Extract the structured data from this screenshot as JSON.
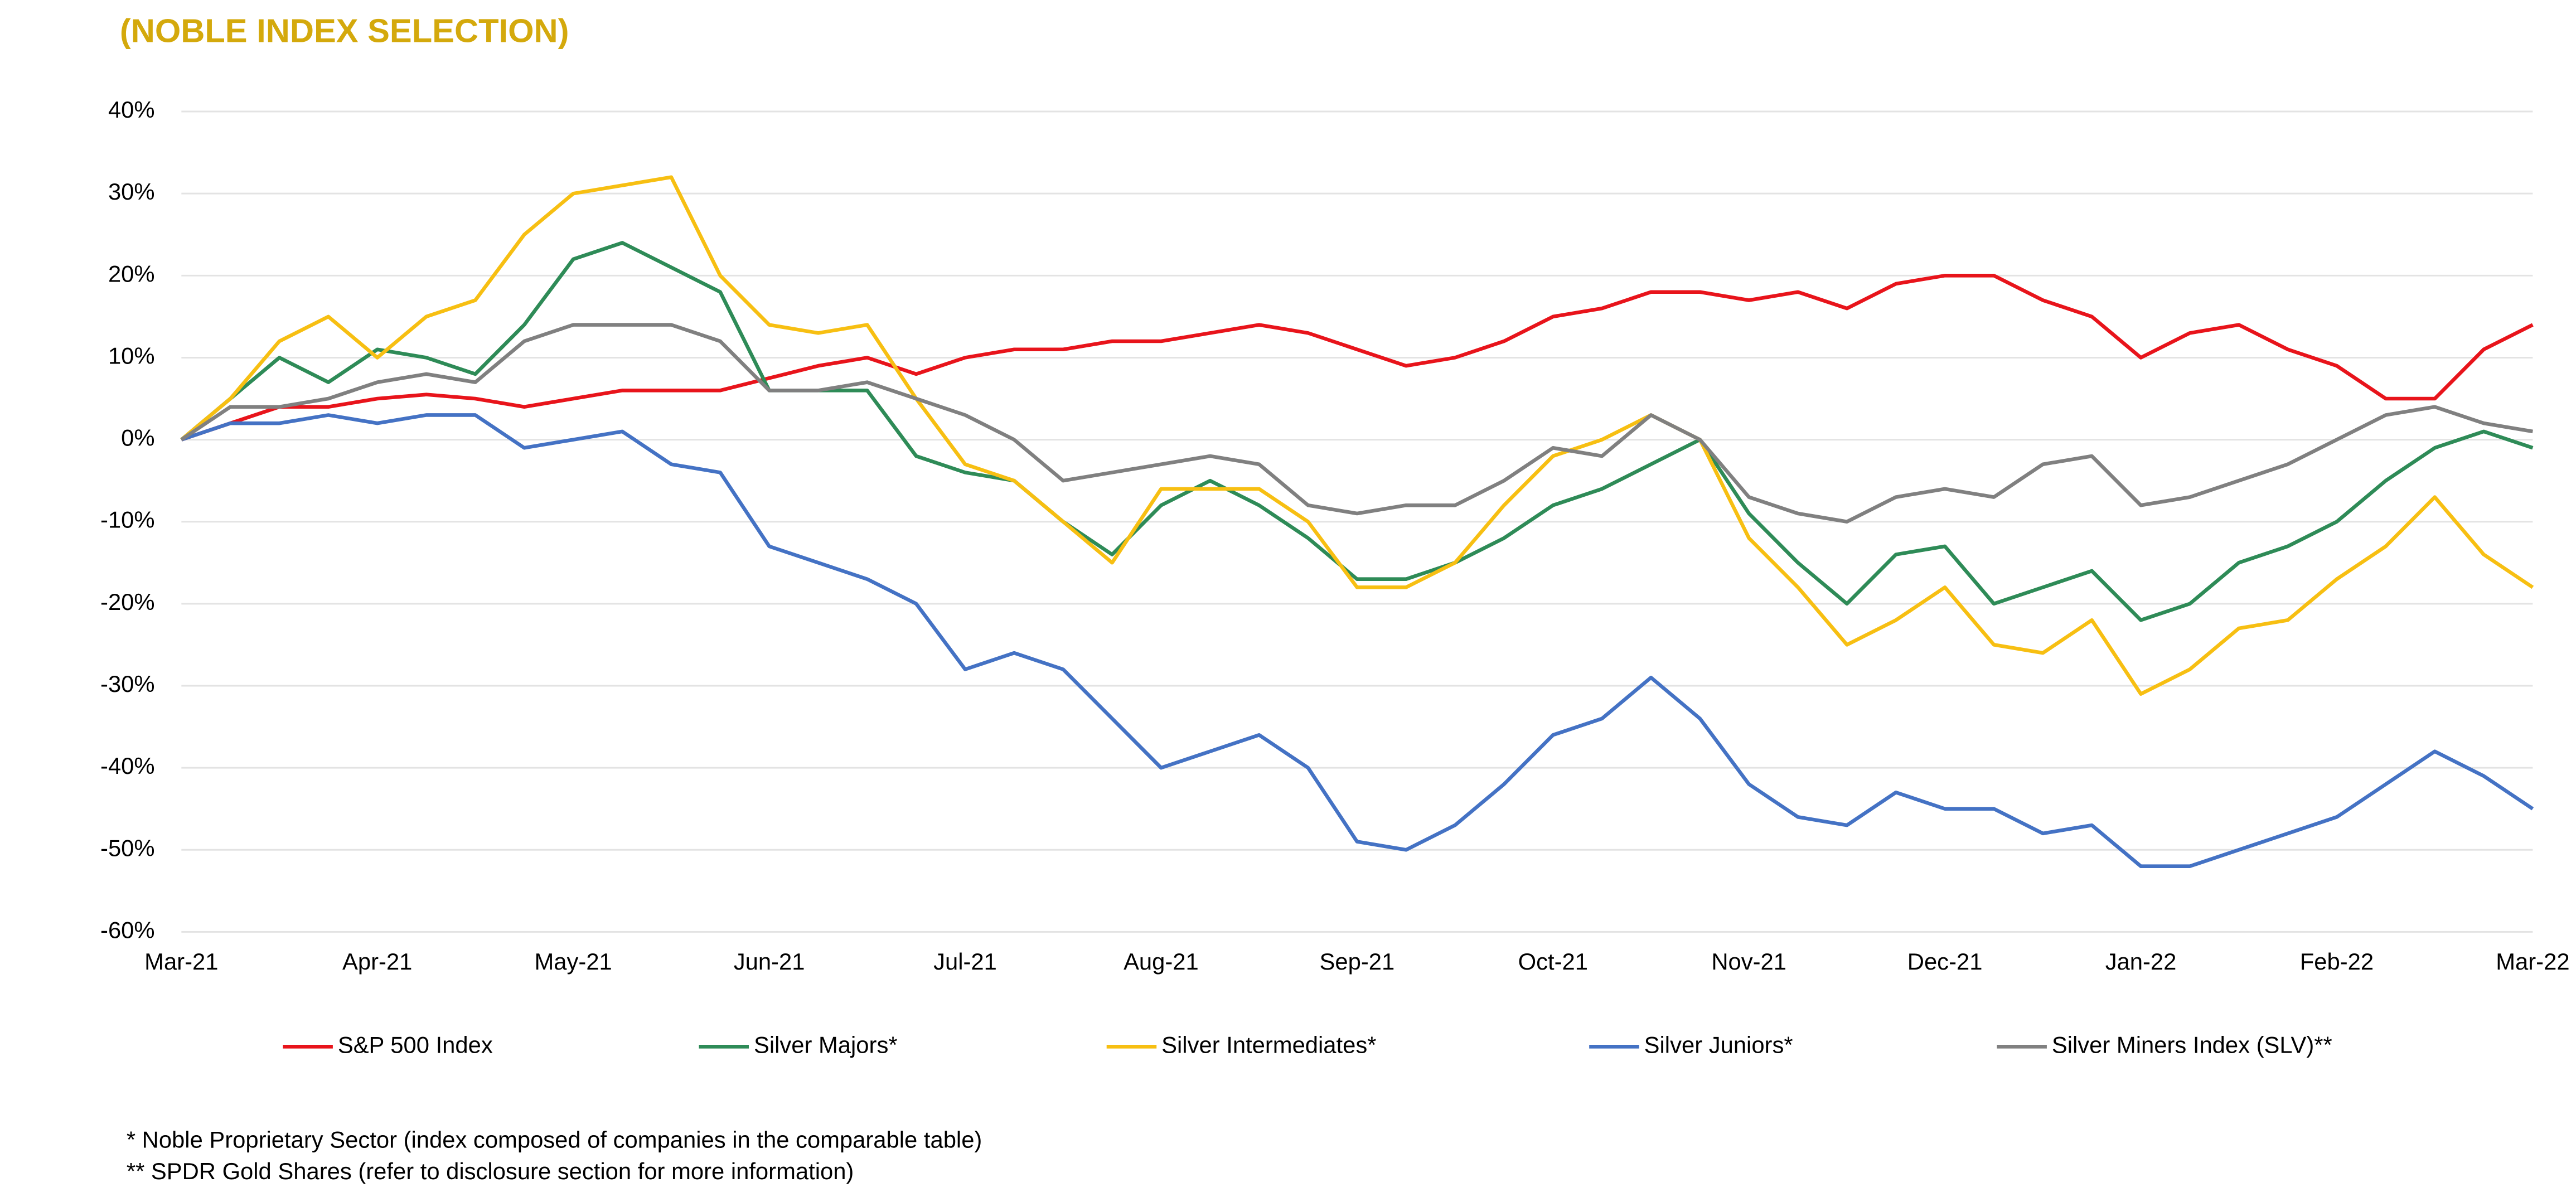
{
  "chart_data": {
    "type": "line",
    "title": "(NOBLE INDEX SELECTION)",
    "categories": [
      "Mar-21",
      null,
      null,
      null,
      "Apr-21",
      null,
      null,
      null,
      "May-21",
      null,
      null,
      null,
      "Jun-21",
      null,
      null,
      null,
      "Jul-21",
      null,
      null,
      null,
      "Aug-21",
      null,
      null,
      null,
      "Sep-21",
      null,
      null,
      null,
      "Oct-21",
      null,
      null,
      null,
      "Nov-21",
      null,
      null,
      null,
      "Dec-21",
      null,
      null,
      null,
      "Jan-22",
      null,
      null,
      null,
      "Feb-22",
      null,
      null,
      null,
      "Mar-22"
    ],
    "series": [
      {
        "name": "S&P 500 Index",
        "color": "#e8141b",
        "values": [
          0,
          2,
          4,
          4,
          5,
          5.5,
          5,
          4,
          5,
          6,
          6,
          6,
          7.5,
          9,
          10,
          8,
          10,
          11,
          11,
          12,
          12,
          13,
          14,
          13,
          11,
          9,
          10,
          12,
          15,
          16,
          18,
          18,
          17,
          18,
          16,
          19,
          20,
          20,
          17,
          15,
          10,
          13,
          14,
          11,
          9,
          5,
          5,
          11,
          14
        ]
      },
      {
        "name": "Silver Majors*",
        "color": "#2e8b57",
        "values": [
          0,
          5,
          10,
          7,
          11,
          10,
          8,
          14,
          22,
          24,
          21,
          18,
          6,
          6,
          6,
          -2,
          -4,
          -5,
          -10,
          -14,
          -8,
          -5,
          -8,
          -12,
          -17,
          -17,
          -15,
          -12,
          -8,
          -6,
          -3,
          0,
          -9,
          -15,
          -20,
          -14,
          -13,
          -20,
          -18,
          -16,
          -22,
          -20,
          -15,
          -13,
          -10,
          -5,
          -1,
          1,
          -1
        ]
      },
      {
        "name": "Silver Intermediates*",
        "color": "#f7bf12",
        "values": [
          0,
          5,
          12,
          15,
          10,
          15,
          17,
          25,
          30,
          31,
          32,
          20,
          14,
          13,
          14,
          5,
          -3,
          -5,
          -10,
          -15,
          -6,
          -6,
          -6,
          -10,
          -18,
          -18,
          -15,
          -8,
          -2,
          0,
          3,
          0,
          -12,
          -18,
          -25,
          -22,
          -18,
          -25,
          -26,
          -22,
          -31,
          -28,
          -23,
          -22,
          -17,
          -13,
          -7,
          -14,
          -18
        ]
      },
      {
        "name": "Silver Juniors*",
        "color": "#4472c4",
        "values": [
          0,
          2,
          2,
          3,
          2,
          3,
          3,
          -1,
          0,
          1,
          -3,
          -4,
          -13,
          -15,
          -17,
          -20,
          -28,
          -26,
          -28,
          -34,
          -40,
          -38,
          -36,
          -40,
          -49,
          -50,
          -47,
          -42,
          -36,
          -34,
          -29,
          -34,
          -42,
          -46,
          -47,
          -43,
          -45,
          -45,
          -48,
          -47,
          -52,
          -52,
          -50,
          -48,
          -46,
          -42,
          -38,
          -41,
          -45
        ]
      },
      {
        "name": "Silver Miners Index (SLV)**",
        "color": "#808080",
        "values": [
          0,
          4,
          4,
          5,
          7,
          8,
          7,
          12,
          14,
          14,
          14,
          12,
          6,
          6,
          7,
          5,
          3,
          0,
          -5,
          -4,
          -3,
          -2,
          -3,
          -8,
          -9,
          -8,
          -8,
          -5,
          -1,
          -2,
          3,
          0,
          -7,
          -9,
          -10,
          -7,
          -6,
          -7,
          -3,
          -2,
          -8,
          -7,
          -5,
          -3,
          0,
          3,
          4,
          2,
          1
        ]
      }
    ],
    "ylim": [
      -60,
      40
    ],
    "yticks": [
      {
        "value": -60,
        "label": "-60%"
      },
      {
        "value": -50,
        "label": "-50%"
      },
      {
        "value": -40,
        "label": "-40%"
      },
      {
        "value": -30,
        "label": "-30%"
      },
      {
        "value": -20,
        "label": "-20%"
      },
      {
        "value": -10,
        "label": "-10%"
      },
      {
        "value": 0,
        "label": "0%"
      },
      {
        "value": 10,
        "label": "10%"
      },
      {
        "value": 20,
        "label": "20%"
      },
      {
        "value": 30,
        "label": "30%"
      },
      {
        "value": 40,
        "label": "40%"
      }
    ],
    "grid": true,
    "legend": "bottom",
    "footnotes": [
      "* Noble Proprietary Sector (index composed of companies in the comparable table)",
      "** SPDR Gold Shares (refer to disclosure section for more information)"
    ]
  }
}
